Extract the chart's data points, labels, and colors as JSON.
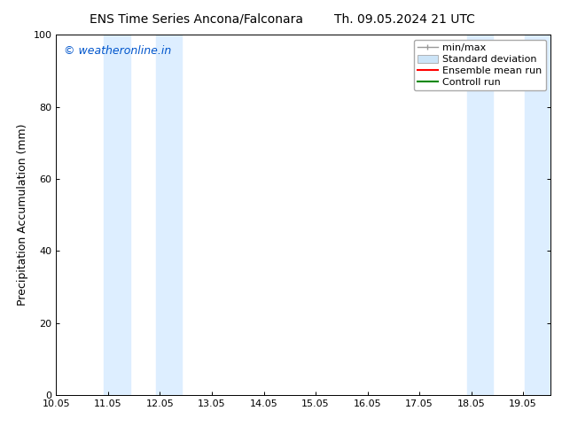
{
  "title_left": "ENS Time Series Ancona/Falconara",
  "title_right": "Th. 09.05.2024 21 UTC",
  "ylabel": "Precipitation Accumulation (mm)",
  "watermark": "© weatheronline.in",
  "watermark_color": "#0055cc",
  "xlim": [
    10.05,
    19.583
  ],
  "ylim": [
    0,
    100
  ],
  "xticks": [
    10.05,
    11.05,
    12.05,
    13.05,
    14.05,
    15.05,
    16.05,
    17.05,
    18.05,
    19.05
  ],
  "xtick_labels": [
    "10.05",
    "11.05",
    "12.05",
    "13.05",
    "14.05",
    "15.05",
    "16.05",
    "17.05",
    "18.05",
    "19.05"
  ],
  "yticks": [
    0,
    20,
    40,
    60,
    80,
    100
  ],
  "background_color": "#ffffff",
  "shaded_bands": [
    {
      "x_start": 10.97,
      "x_end": 11.47,
      "color": "#ddeeff"
    },
    {
      "x_start": 11.97,
      "x_end": 12.47,
      "color": "#ddeeff"
    },
    {
      "x_start": 17.97,
      "x_end": 18.47,
      "color": "#ddeeff"
    },
    {
      "x_start": 19.08,
      "x_end": 19.583,
      "color": "#ddeeff"
    }
  ],
  "legend_labels": [
    "min/max",
    "Standard deviation",
    "Ensemble mean run",
    "Controll run"
  ],
  "legend_minmax_color": "#999999",
  "legend_stddev_color": "#cce4f7",
  "legend_ens_color": "#ff0000",
  "legend_ctrl_color": "#008800",
  "font_size_title": 10,
  "font_size_tick": 8,
  "font_size_ylabel": 9,
  "font_size_watermark": 9,
  "font_size_legend": 8,
  "figsize": [
    6.34,
    4.9
  ],
  "dpi": 100
}
